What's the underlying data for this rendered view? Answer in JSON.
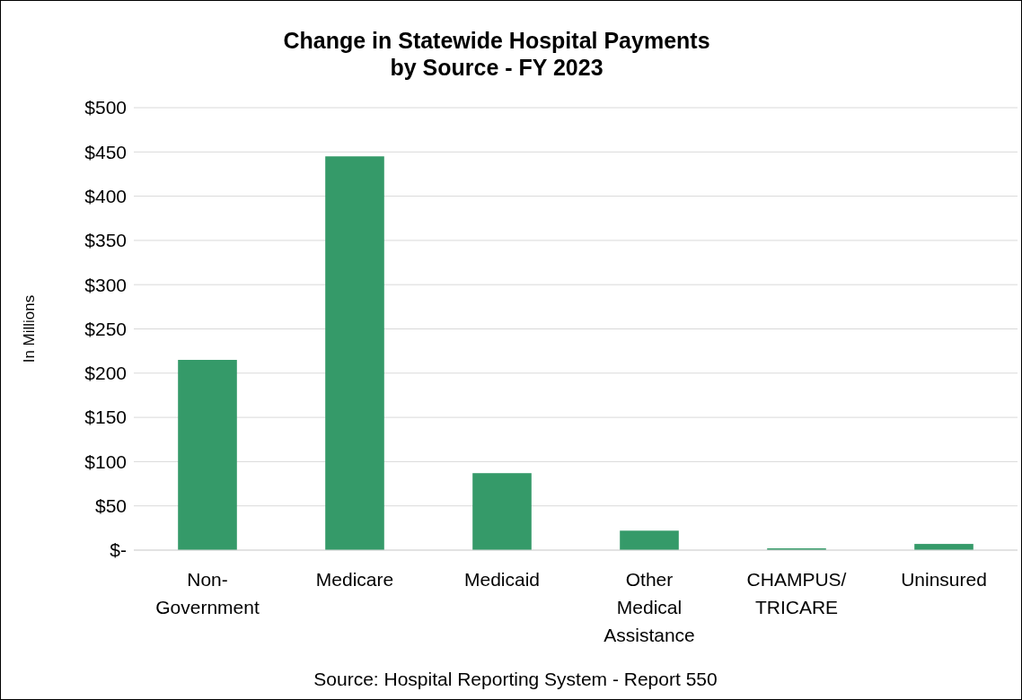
{
  "chart_data": {
    "type": "bar",
    "title": "Change in Statewide Hospital Payments\nby Source - FY 2023",
    "ylabel": "In Millions",
    "categories": [
      "Non-Government",
      "Medicare",
      "Medicaid",
      "Other Medical Assistance",
      "CHAMPUS/TRICARE",
      "Uninsured"
    ],
    "values": [
      215,
      445,
      87,
      22,
      2,
      7
    ],
    "color": "#359a69",
    "ylim": [
      0,
      500
    ],
    "yticks": [
      {
        "value": 0,
        "label": "$-"
      },
      {
        "value": 50,
        "label": "$50"
      },
      {
        "value": 100,
        "label": "$100"
      },
      {
        "value": 150,
        "label": "$150"
      },
      {
        "value": 200,
        "label": "$200"
      },
      {
        "value": 250,
        "label": "$250"
      },
      {
        "value": 300,
        "label": "$300"
      },
      {
        "value": 350,
        "label": "$350"
      },
      {
        "value": 400,
        "label": "$400"
      },
      {
        "value": 450,
        "label": "$450"
      },
      {
        "value": 500,
        "label": "$500"
      }
    ],
    "grid": "y",
    "annotations": [
      "Source: Hospital Reporting System - Report 550"
    ]
  }
}
